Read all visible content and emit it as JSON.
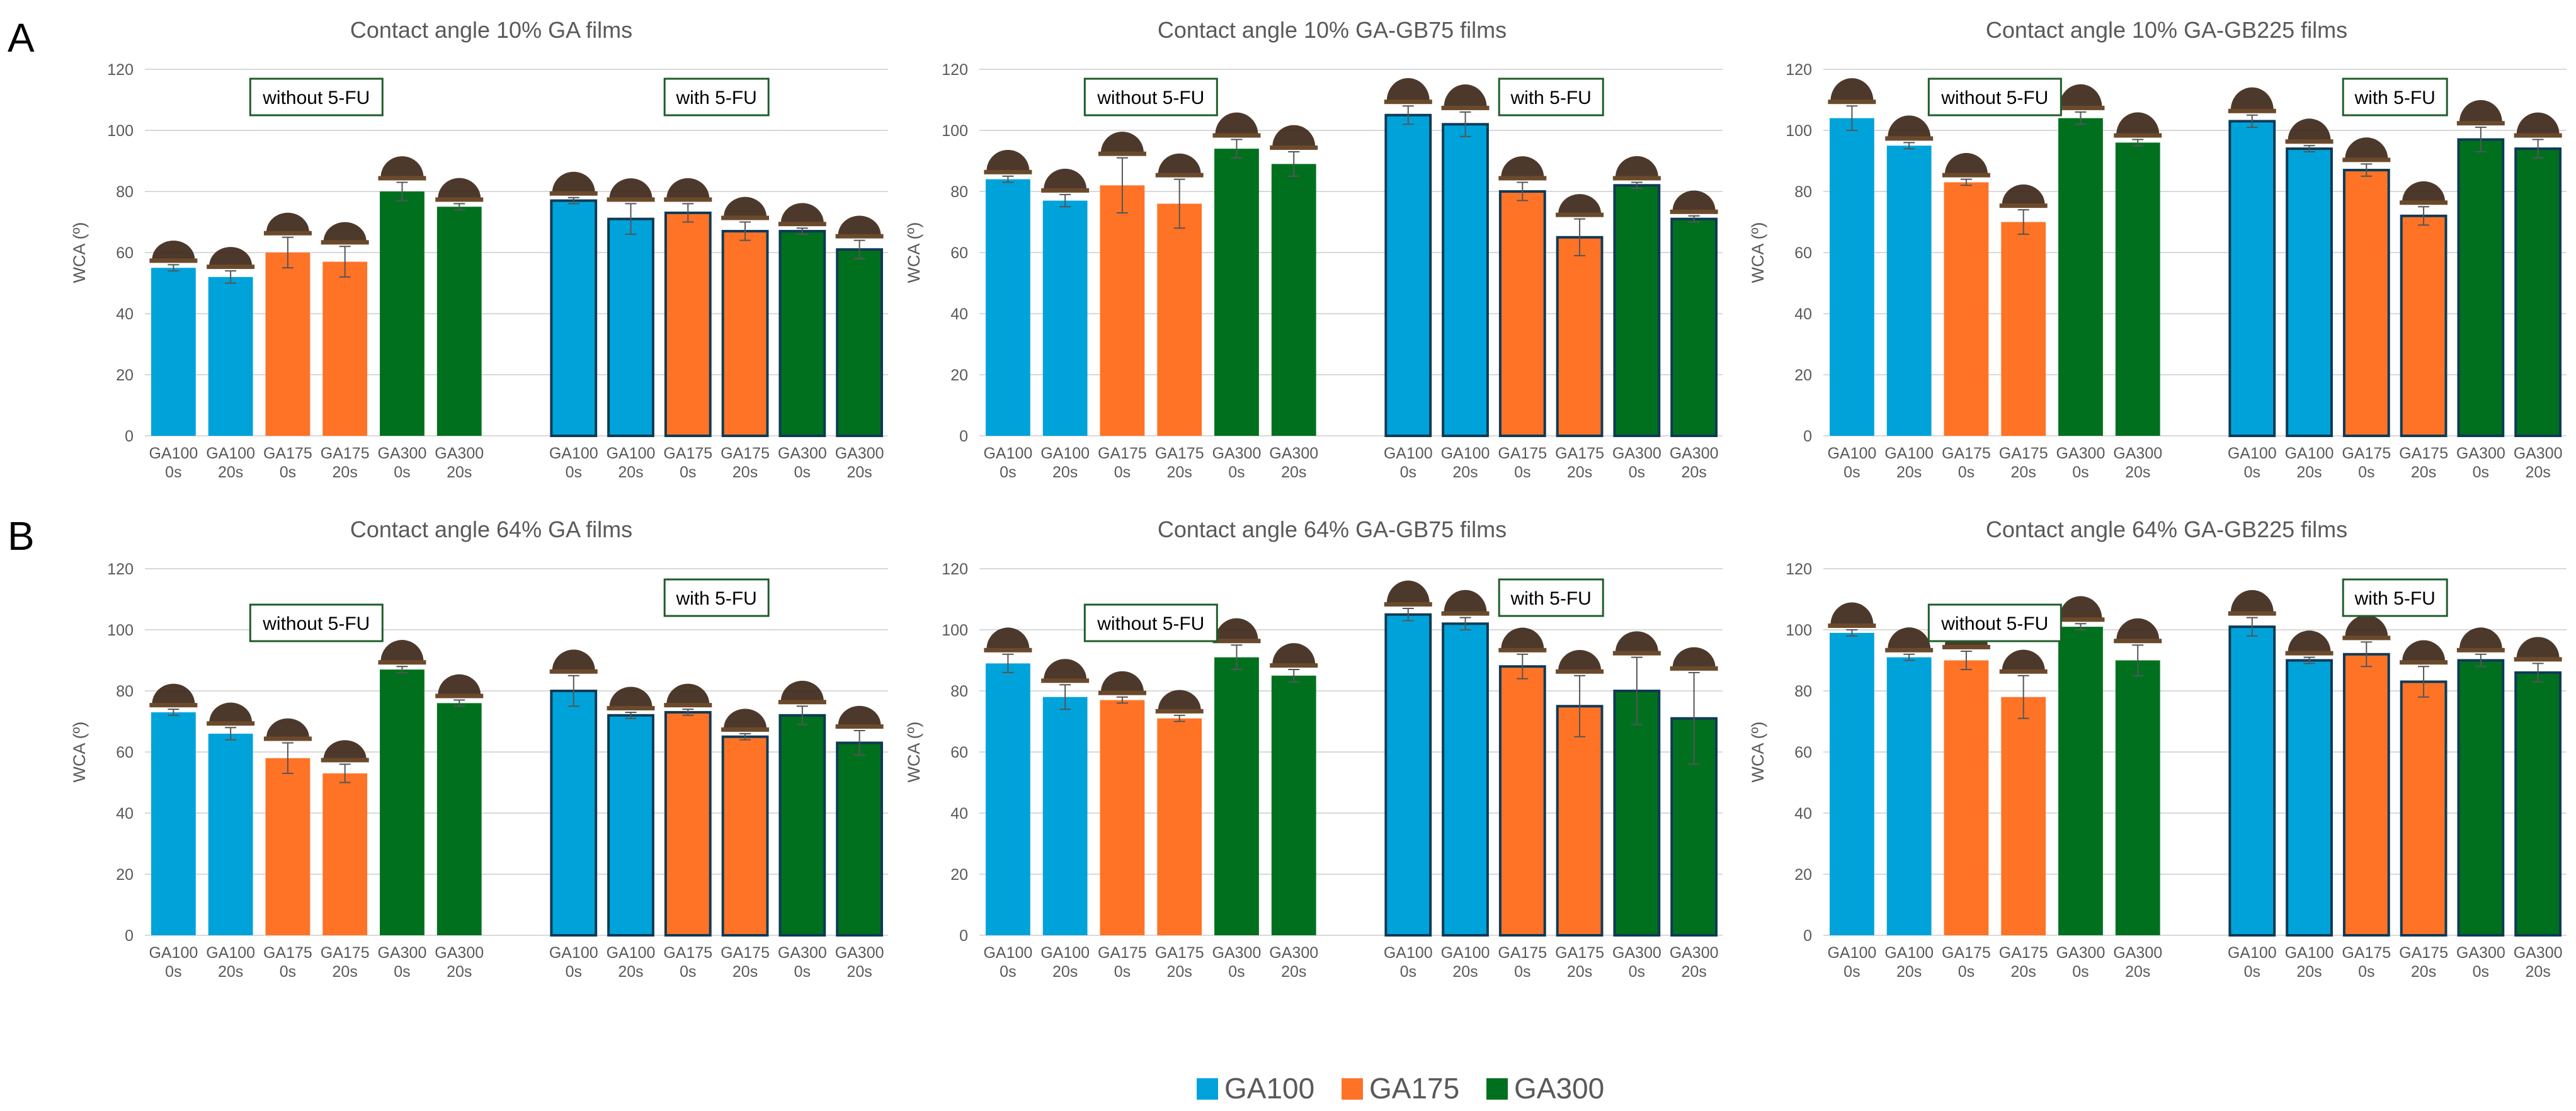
{
  "panel_labels": [
    "A",
    "B"
  ],
  "colors": {
    "GA100": "#00a3d9",
    "GA175": "#ff7327",
    "GA300": "#00701f",
    "outline_with": "#0e3a55",
    "grid": "#d9d9d9",
    "text": "#595959",
    "annotation_border": "#1f5c2a"
  },
  "legend": [
    {
      "label": "GA100",
      "color_key": "GA100"
    },
    {
      "label": "GA175",
      "color_key": "GA175"
    },
    {
      "label": "GA300",
      "color_key": "GA300"
    }
  ],
  "chart_data": [
    {
      "type": "bar",
      "panel": "A",
      "title": "Contact angle 10% GA films",
      "ylabel": "WCA (º)",
      "ylim": [
        0,
        120
      ],
      "yticks": [
        0,
        20,
        40,
        60,
        80,
        100,
        120
      ],
      "annotations": [
        "without 5-FU",
        "with 5-FU"
      ],
      "groups": [
        {
          "name": "without 5-FU",
          "bars": [
            {
              "category": "GA100 0s",
              "series": "GA100",
              "value": 55,
              "error": 1
            },
            {
              "category": "GA100 20s",
              "series": "GA100",
              "value": 52,
              "error": 2
            },
            {
              "category": "GA175 0s",
              "series": "GA175",
              "value": 60,
              "error": 5
            },
            {
              "category": "GA175 20s",
              "series": "GA175",
              "value": 57,
              "error": 5
            },
            {
              "category": "GA300 0s",
              "series": "GA300",
              "value": 80,
              "error": 3
            },
            {
              "category": "GA300 20s",
              "series": "GA300",
              "value": 75,
              "error": 1
            }
          ]
        },
        {
          "name": "with 5-FU",
          "bars": [
            {
              "category": "GA100 0s",
              "series": "GA100",
              "value": 77,
              "error": 1
            },
            {
              "category": "GA100 20s",
              "series": "GA100",
              "value": 71,
              "error": 5
            },
            {
              "category": "GA175 0s",
              "series": "GA175",
              "value": 73,
              "error": 3
            },
            {
              "category": "GA175 20s",
              "series": "GA175",
              "value": 67,
              "error": 3
            },
            {
              "category": "GA300 0s",
              "series": "GA300",
              "value": 67,
              "error": 1
            },
            {
              "category": "GA300 20s",
              "series": "GA300",
              "value": 61,
              "error": 3
            }
          ]
        }
      ]
    },
    {
      "type": "bar",
      "panel": "A",
      "title": "Contact angle 10% GA-GB75 films",
      "ylabel": "WCA (º)",
      "ylim": [
        0,
        120
      ],
      "yticks": [
        0,
        20,
        40,
        60,
        80,
        100,
        120
      ],
      "annotations": [
        "without 5-FU",
        "with 5-FU"
      ],
      "groups": [
        {
          "name": "without 5-FU",
          "bars": [
            {
              "category": "GA100 0s",
              "series": "GA100",
              "value": 84,
              "error": 1
            },
            {
              "category": "GA100 20s",
              "series": "GA100",
              "value": 77,
              "error": 2
            },
            {
              "category": "GA175 0s",
              "series": "GA175",
              "value": 82,
              "error": 9
            },
            {
              "category": "GA175 20s",
              "series": "GA175",
              "value": 76,
              "error": 8
            },
            {
              "category": "GA300 0s",
              "series": "GA300",
              "value": 94,
              "error": 3
            },
            {
              "category": "GA300 20s",
              "series": "GA300",
              "value": 89,
              "error": 4
            }
          ]
        },
        {
          "name": "with 5-FU",
          "bars": [
            {
              "category": "GA100 0s",
              "series": "GA100",
              "value": 105,
              "error": 3
            },
            {
              "category": "GA100 20s",
              "series": "GA100",
              "value": 102,
              "error": 4
            },
            {
              "category": "GA175 0s",
              "series": "GA175",
              "value": 80,
              "error": 3
            },
            {
              "category": "GA175 20s",
              "series": "GA175",
              "value": 65,
              "error": 6
            },
            {
              "category": "GA300 0s",
              "series": "GA300",
              "value": 82,
              "error": 1
            },
            {
              "category": "GA300 20s",
              "series": "GA300",
              "value": 71,
              "error": 1
            }
          ]
        }
      ]
    },
    {
      "type": "bar",
      "panel": "A",
      "title": "Contact angle 10% GA-GB225 films",
      "ylabel": "WCA (º)",
      "ylim": [
        0,
        120
      ],
      "yticks": [
        0,
        20,
        40,
        60,
        80,
        100,
        120
      ],
      "annotations": [
        "without 5-FU",
        "with 5-FU"
      ],
      "groups": [
        {
          "name": "without 5-FU",
          "bars": [
            {
              "category": "GA100 0s",
              "series": "GA100",
              "value": 104,
              "error": 4
            },
            {
              "category": "GA100 20s",
              "series": "GA100",
              "value": 95,
              "error": 1
            },
            {
              "category": "GA175 0s",
              "series": "GA175",
              "value": 83,
              "error": 1
            },
            {
              "category": "GA175 20s",
              "series": "GA175",
              "value": 70,
              "error": 4
            },
            {
              "category": "GA300 0s",
              "series": "GA300",
              "value": 104,
              "error": 2
            },
            {
              "category": "GA300 20s",
              "series": "GA300",
              "value": 96,
              "error": 1
            }
          ]
        },
        {
          "name": "with 5-FU",
          "bars": [
            {
              "category": "GA100 0s",
              "series": "GA100",
              "value": 103,
              "error": 2
            },
            {
              "category": "GA100 20s",
              "series": "GA100",
              "value": 94,
              "error": 1
            },
            {
              "category": "GA175 0s",
              "series": "GA175",
              "value": 87,
              "error": 2
            },
            {
              "category": "GA175 20s",
              "series": "GA175",
              "value": 72,
              "error": 3
            },
            {
              "category": "GA300 0s",
              "series": "GA300",
              "value": 97,
              "error": 4
            },
            {
              "category": "GA300 20s",
              "series": "GA300",
              "value": 94,
              "error": 3
            }
          ]
        }
      ]
    },
    {
      "type": "bar",
      "panel": "B",
      "title": "Contact angle 64% GA films",
      "ylabel": "WCA (º)",
      "ylim": [
        0,
        120
      ],
      "yticks": [
        0,
        20,
        40,
        60,
        80,
        100,
        120
      ],
      "annotations": [
        "without 5-FU",
        "with 5-FU"
      ],
      "groups": [
        {
          "name": "without 5-FU",
          "bars": [
            {
              "category": "GA100 0s",
              "series": "GA100",
              "value": 73,
              "error": 1
            },
            {
              "category": "GA100 20s",
              "series": "GA100",
              "value": 66,
              "error": 2
            },
            {
              "category": "GA175 0s",
              "series": "GA175",
              "value": 58,
              "error": 5
            },
            {
              "category": "GA175 20s",
              "series": "GA175",
              "value": 53,
              "error": 3
            },
            {
              "category": "GA300 0s",
              "series": "GA300",
              "value": 87,
              "error": 1
            },
            {
              "category": "GA300 20s",
              "series": "GA300",
              "value": 76,
              "error": 1
            }
          ]
        },
        {
          "name": "with 5-FU",
          "bars": [
            {
              "category": "GA100 0s",
              "series": "GA100",
              "value": 80,
              "error": 5
            },
            {
              "category": "GA100 20s",
              "series": "GA100",
              "value": 72,
              "error": 1
            },
            {
              "category": "GA175 0s",
              "series": "GA175",
              "value": 73,
              "error": 1
            },
            {
              "category": "GA175 20s",
              "series": "GA175",
              "value": 65,
              "error": 1
            },
            {
              "category": "GA300 0s",
              "series": "GA300",
              "value": 72,
              "error": 3
            },
            {
              "category": "GA300 20s",
              "series": "GA300",
              "value": 63,
              "error": 4
            }
          ]
        }
      ]
    },
    {
      "type": "bar",
      "panel": "B",
      "title": "Contact angle 64% GA-GB75 films",
      "ylabel": "WCA (º)",
      "ylim": [
        0,
        120
      ],
      "yticks": [
        0,
        20,
        40,
        60,
        80,
        100,
        120
      ],
      "annotations": [
        "without 5-FU",
        "with 5-FU"
      ],
      "groups": [
        {
          "name": "without 5-FU",
          "bars": [
            {
              "category": "GA100 0s",
              "series": "GA100",
              "value": 89,
              "error": 3
            },
            {
              "category": "GA100 20s",
              "series": "GA100",
              "value": 78,
              "error": 4
            },
            {
              "category": "GA175 0s",
              "series": "GA175",
              "value": 77,
              "error": 1
            },
            {
              "category": "GA175 20s",
              "series": "GA175",
              "value": 71,
              "error": 1
            },
            {
              "category": "GA300 0s",
              "series": "GA300",
              "value": 91,
              "error": 4
            },
            {
              "category": "GA300 20s",
              "series": "GA300",
              "value": 85,
              "error": 2
            }
          ]
        },
        {
          "name": "with 5-FU",
          "bars": [
            {
              "category": "GA100 0s",
              "series": "GA100",
              "value": 105,
              "error": 2
            },
            {
              "category": "GA100 20s",
              "series": "GA100",
              "value": 102,
              "error": 2
            },
            {
              "category": "GA175 0s",
              "series": "GA175",
              "value": 88,
              "error": 4
            },
            {
              "category": "GA175 20s",
              "series": "GA175",
              "value": 75,
              "error": 10
            },
            {
              "category": "GA300 0s",
              "series": "GA300",
              "value": 80,
              "error": 11
            },
            {
              "category": "GA300 20s",
              "series": "GA300",
              "value": 71,
              "error": 15
            }
          ]
        }
      ]
    },
    {
      "type": "bar",
      "panel": "B",
      "title": "Contact angle 64% GA-GB225 films",
      "ylabel": "WCA (º)",
      "ylim": [
        0,
        120
      ],
      "yticks": [
        0,
        20,
        40,
        60,
        80,
        100,
        120
      ],
      "annotations": [
        "without 5-FU",
        "with 5-FU"
      ],
      "groups": [
        {
          "name": "without 5-FU",
          "bars": [
            {
              "category": "GA100 0s",
              "series": "GA100",
              "value": 99,
              "error": 1
            },
            {
              "category": "GA100 20s",
              "series": "GA100",
              "value": 91,
              "error": 1
            },
            {
              "category": "GA175 0s",
              "series": "GA175",
              "value": 90,
              "error": 3
            },
            {
              "category": "GA175 20s",
              "series": "GA175",
              "value": 78,
              "error": 7
            },
            {
              "category": "GA300 0s",
              "series": "GA300",
              "value": 101,
              "error": 1
            },
            {
              "category": "GA300 20s",
              "series": "GA300",
              "value": 90,
              "error": 5
            }
          ]
        },
        {
          "name": "with 5-FU",
          "bars": [
            {
              "category": "GA100 0s",
              "series": "GA100",
              "value": 101,
              "error": 3
            },
            {
              "category": "GA100 20s",
              "series": "GA100",
              "value": 90,
              "error": 1
            },
            {
              "category": "GA175 0s",
              "series": "GA175",
              "value": 92,
              "error": 4
            },
            {
              "category": "GA175 20s",
              "series": "GA175",
              "value": 83,
              "error": 5
            },
            {
              "category": "GA300 0s",
              "series": "GA300",
              "value": 90,
              "error": 2
            },
            {
              "category": "GA300 20s",
              "series": "GA300",
              "value": 86,
              "error": 3
            }
          ]
        }
      ]
    }
  ]
}
